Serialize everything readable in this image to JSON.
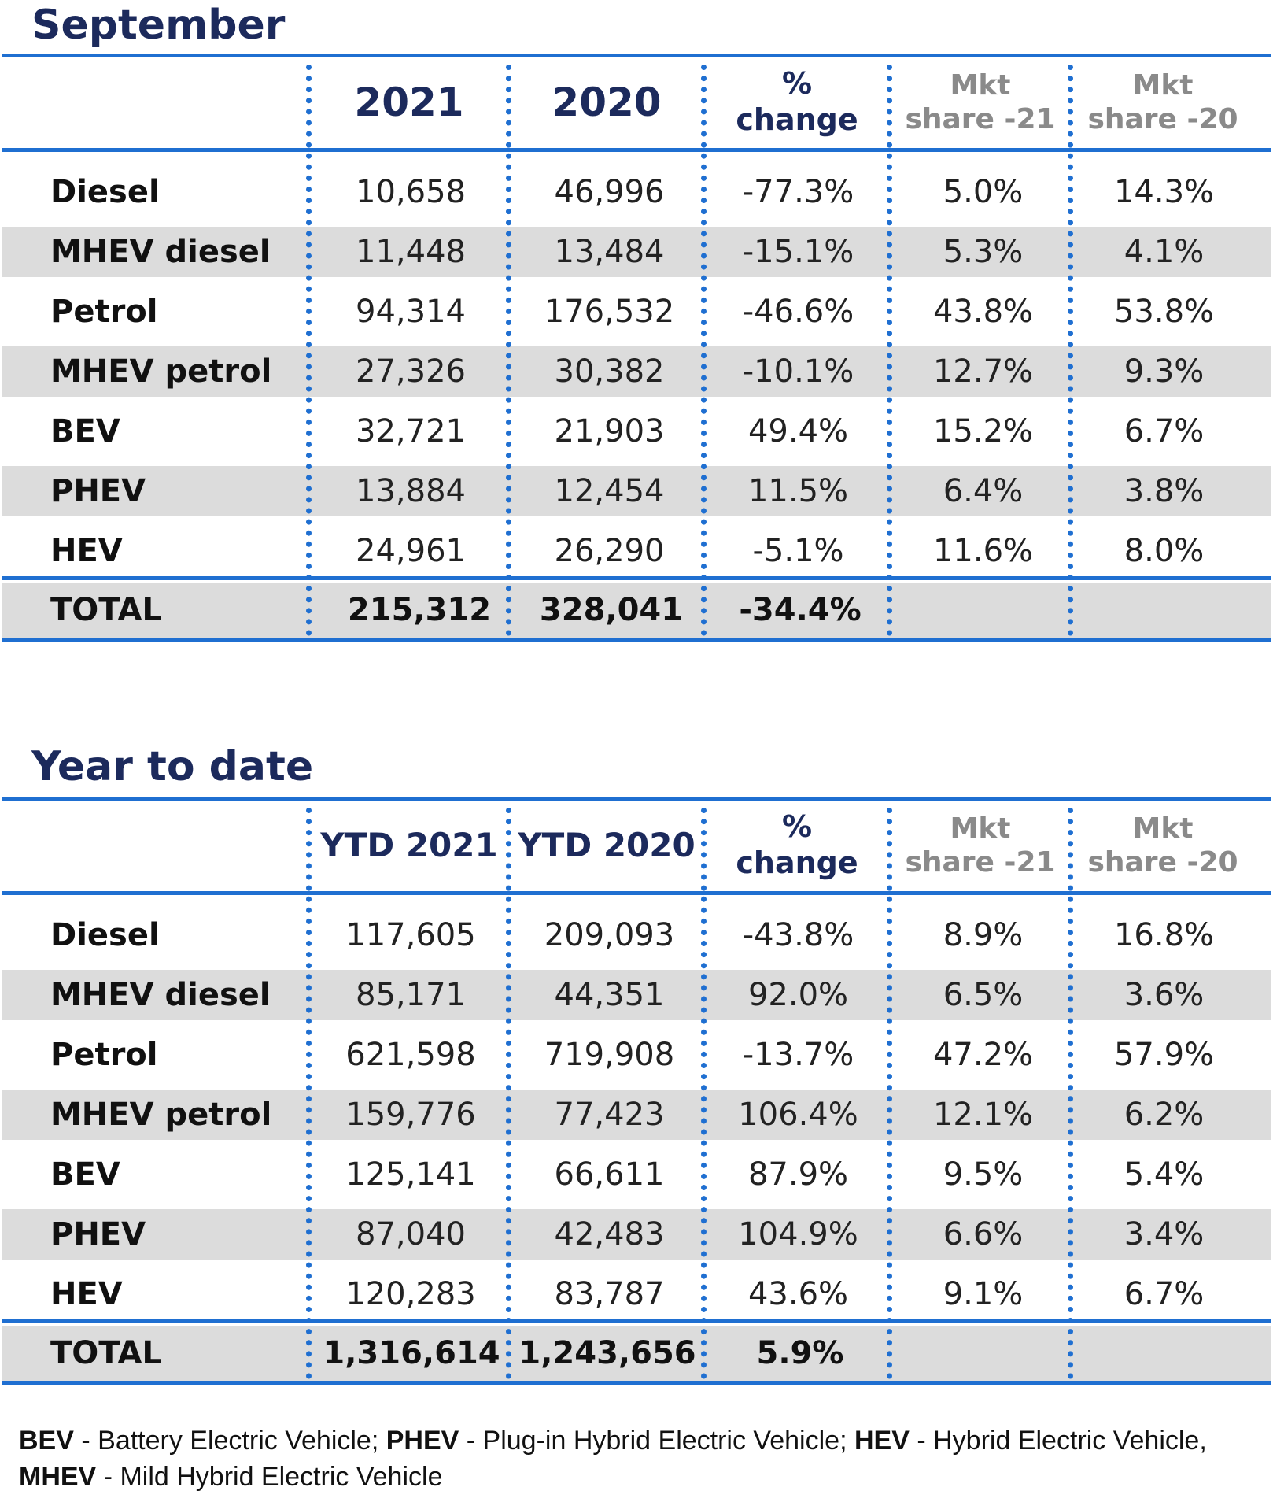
{
  "sections": [
    {
      "title": "September",
      "headers": {
        "col1": "2021",
        "col2": "2020",
        "pct": [
          "%",
          "change"
        ],
        "mkt21": [
          "Mkt",
          "share -21"
        ],
        "mkt20": [
          "Mkt",
          "share -20"
        ]
      },
      "rows": [
        {
          "label": "Diesel",
          "v1": "10,658",
          "v2": "46,996",
          "pct": "-77.3%",
          "m21": "5.0%",
          "m20": "14.3%"
        },
        {
          "label": "MHEV diesel",
          "v1": "11,448",
          "v2": "13,484",
          "pct": "-15.1%",
          "m21": "5.3%",
          "m20": "4.1%"
        },
        {
          "label": "Petrol",
          "v1": "94,314",
          "v2": "176,532",
          "pct": "-46.6%",
          "m21": "43.8%",
          "m20": "53.8%"
        },
        {
          "label": "MHEV petrol",
          "v1": "27,326",
          "v2": "30,382",
          "pct": "-10.1%",
          "m21": "12.7%",
          "m20": "9.3%"
        },
        {
          "label": "BEV",
          "v1": "32,721",
          "v2": "21,903",
          "pct": "49.4%",
          "m21": "15.2%",
          "m20": "6.7%"
        },
        {
          "label": "PHEV",
          "v1": "13,884",
          "v2": "12,454",
          "pct": "11.5%",
          "m21": "6.4%",
          "m20": "3.8%"
        },
        {
          "label": "HEV",
          "v1": "24,961",
          "v2": "26,290",
          "pct": "-5.1%",
          "m21": "11.6%",
          "m20": "8.0%"
        }
      ],
      "total": {
        "label": "TOTAL",
        "v1": "215,312",
        "v2": "328,041",
        "pct": "-34.4%"
      }
    },
    {
      "title": "Year to date",
      "headers": {
        "col1": "YTD 2021",
        "col2": "YTD 2020",
        "pct": [
          "%",
          "change"
        ],
        "mkt21": [
          "Mkt",
          "share -21"
        ],
        "mkt20": [
          "Mkt",
          "share -20"
        ]
      },
      "rows": [
        {
          "label": "Diesel",
          "v1": "117,605",
          "v2": "209,093",
          "pct": "-43.8%",
          "m21": "8.9%",
          "m20": "16.8%"
        },
        {
          "label": "MHEV diesel",
          "v1": "85,171",
          "v2": "44,351",
          "pct": "92.0%",
          "m21": "6.5%",
          "m20": "3.6%"
        },
        {
          "label": "Petrol",
          "v1": "621,598",
          "v2": "719,908",
          "pct": "-13.7%",
          "m21": "47.2%",
          "m20": "57.9%"
        },
        {
          "label": "MHEV petrol",
          "v1": "159,776",
          "v2": "77,423",
          "pct": "106.4%",
          "m21": "12.1%",
          "m20": "6.2%"
        },
        {
          "label": "BEV",
          "v1": "125,141",
          "v2": "66,611",
          "pct": "87.9%",
          "m21": "9.5%",
          "m20": "5.4%"
        },
        {
          "label": "PHEV",
          "v1": "87,040",
          "v2": "42,483",
          "pct": "104.9%",
          "m21": "6.6%",
          "m20": "3.4%"
        },
        {
          "label": "HEV",
          "v1": "120,283",
          "v2": "83,787",
          "pct": "43.6%",
          "m21": "9.1%",
          "m20": "6.7%"
        }
      ],
      "total": {
        "label": "TOTAL",
        "v1": "1,316,614",
        "v2": "1,243,656",
        "pct": "5.9%"
      }
    }
  ],
  "legend": {
    "line1": [
      {
        "abbr": "BEV",
        "text": " - Battery Electric Vehicle; "
      },
      {
        "abbr": "PHEV",
        "text": " - Plug-in Hybrid Electric Vehicle; "
      },
      {
        "abbr": "HEV",
        "text": " - Hybrid Electric Vehicle,"
      }
    ],
    "line2": [
      {
        "abbr": "MHEV",
        "text": " - Mild Hybrid Electric Vehicle"
      }
    ]
  },
  "colors": {
    "accent": "#1f6fd1",
    "title": "#1c2a5c",
    "shade": "#dcdcdc",
    "muted": "#8a8a8a"
  }
}
